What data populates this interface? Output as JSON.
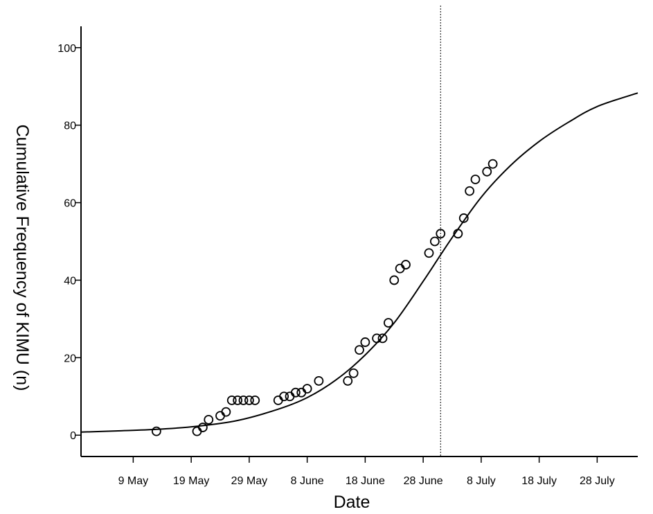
{
  "chart_data": {
    "type": "scatter",
    "title": "",
    "xlabel": "Date",
    "ylabel": "Cumulative Frequency of KIMU (n)",
    "x_unit": "date (2013)",
    "xlim": [
      "2013-04-30",
      "2013-08-04"
    ],
    "ylim": [
      -5.5,
      105.5
    ],
    "x_ticks": [
      {
        "date": "2013-05-09",
        "label": "9 May"
      },
      {
        "date": "2013-05-19",
        "label": "19 May"
      },
      {
        "date": "2013-05-29",
        "label": "29 May"
      },
      {
        "date": "2013-06-08",
        "label": "8 June"
      },
      {
        "date": "2013-06-18",
        "label": "18 June"
      },
      {
        "date": "2013-06-28",
        "label": "28 June"
      },
      {
        "date": "2013-07-08",
        "label": "8 July"
      },
      {
        "date": "2013-07-18",
        "label": "18 July"
      },
      {
        "date": "2013-07-28",
        "label": "28 July"
      }
    ],
    "y_ticks": [
      {
        "value": 0,
        "label": "0"
      },
      {
        "value": 20,
        "label": "20"
      },
      {
        "value": 40,
        "label": "40"
      },
      {
        "value": 60,
        "label": "60"
      },
      {
        "value": 80,
        "label": "80"
      },
      {
        "value": 100,
        "label": "100"
      }
    ],
    "grid": false,
    "legend": "none",
    "reference_line": {
      "x": "2013-07-01",
      "style": "dotted"
    },
    "points": [
      {
        "x": "2013-05-13",
        "y": 1
      },
      {
        "x": "2013-05-20",
        "y": 1
      },
      {
        "x": "2013-05-21",
        "y": 2
      },
      {
        "x": "2013-05-22",
        "y": 4
      },
      {
        "x": "2013-05-24",
        "y": 5
      },
      {
        "x": "2013-05-25",
        "y": 6
      },
      {
        "x": "2013-05-26",
        "y": 9
      },
      {
        "x": "2013-05-27",
        "y": 9
      },
      {
        "x": "2013-05-28",
        "y": 9
      },
      {
        "x": "2013-05-29",
        "y": 9
      },
      {
        "x": "2013-05-30",
        "y": 9
      },
      {
        "x": "2013-06-03",
        "y": 9
      },
      {
        "x": "2013-06-04",
        "y": 10
      },
      {
        "x": "2013-06-05",
        "y": 10
      },
      {
        "x": "2013-06-06",
        "y": 11
      },
      {
        "x": "2013-06-07",
        "y": 11
      },
      {
        "x": "2013-06-08",
        "y": 12
      },
      {
        "x": "2013-06-10",
        "y": 14
      },
      {
        "x": "2013-06-15",
        "y": 14
      },
      {
        "x": "2013-06-16",
        "y": 16
      },
      {
        "x": "2013-06-17",
        "y": 22
      },
      {
        "x": "2013-06-18",
        "y": 24
      },
      {
        "x": "2013-06-20",
        "y": 25
      },
      {
        "x": "2013-06-21",
        "y": 25
      },
      {
        "x": "2013-06-22",
        "y": 29
      },
      {
        "x": "2013-06-23",
        "y": 40
      },
      {
        "x": "2013-06-24",
        "y": 43
      },
      {
        "x": "2013-06-25",
        "y": 44
      },
      {
        "x": "2013-06-29",
        "y": 47
      },
      {
        "x": "2013-06-30",
        "y": 50
      },
      {
        "x": "2013-07-01",
        "y": 52
      },
      {
        "x": "2013-07-04",
        "y": 52
      },
      {
        "x": "2013-07-05",
        "y": 56
      },
      {
        "x": "2013-07-06",
        "y": 63
      },
      {
        "x": "2013-07-07",
        "y": 66
      },
      {
        "x": "2013-07-09",
        "y": 68
      },
      {
        "x": "2013-07-10",
        "y": 70
      }
    ],
    "fitted_curve": [
      {
        "x": "2013-04-30",
        "y": 0.8
      },
      {
        "x": "2013-05-06",
        "y": 1.1
      },
      {
        "x": "2013-05-13",
        "y": 1.5
      },
      {
        "x": "2013-05-20",
        "y": 2.3
      },
      {
        "x": "2013-05-27",
        "y": 3.8
      },
      {
        "x": "2013-06-03",
        "y": 6.7
      },
      {
        "x": "2013-06-08",
        "y": 9.7
      },
      {
        "x": "2013-06-13",
        "y": 14.3
      },
      {
        "x": "2013-06-18",
        "y": 20.7
      },
      {
        "x": "2013-06-23",
        "y": 29.0
      },
      {
        "x": "2013-06-28",
        "y": 39.7
      },
      {
        "x": "2013-07-03",
        "y": 51.0
      },
      {
        "x": "2013-07-08",
        "y": 61.4
      },
      {
        "x": "2013-07-13",
        "y": 69.5
      },
      {
        "x": "2013-07-18",
        "y": 75.8
      },
      {
        "x": "2013-07-23",
        "y": 80.7
      },
      {
        "x": "2013-07-28",
        "y": 84.8
      },
      {
        "x": "2013-08-04",
        "y": 88.3
      }
    ]
  }
}
